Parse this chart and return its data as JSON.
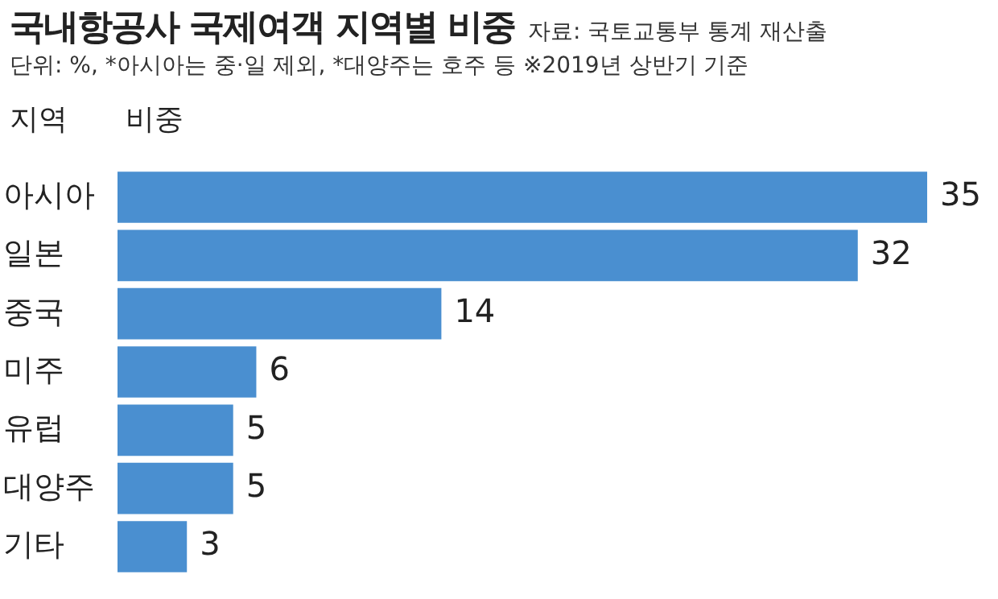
{
  "chart_data": {
    "type": "bar",
    "orientation": "horizontal",
    "title": "국내항공사 국제여객 지역별 비중",
    "subtitle": "단위: %, *아시아는 중·일 제외, *대양주는 호주 등 ※2019년 상반기 기준",
    "annotations": [
      "자료: 국토교통부 통계 재산출"
    ],
    "ylabel": "지역",
    "xlabel": "비중",
    "categories": [
      "아시아",
      "일본",
      "중국",
      "미주",
      "유럽",
      "대양주",
      "기타"
    ],
    "values": [
      35,
      32,
      14,
      6,
      5,
      5,
      3
    ],
    "color": "#4a8fd0",
    "data_labels": true,
    "legend": false,
    "tick_labels": "y"
  }
}
